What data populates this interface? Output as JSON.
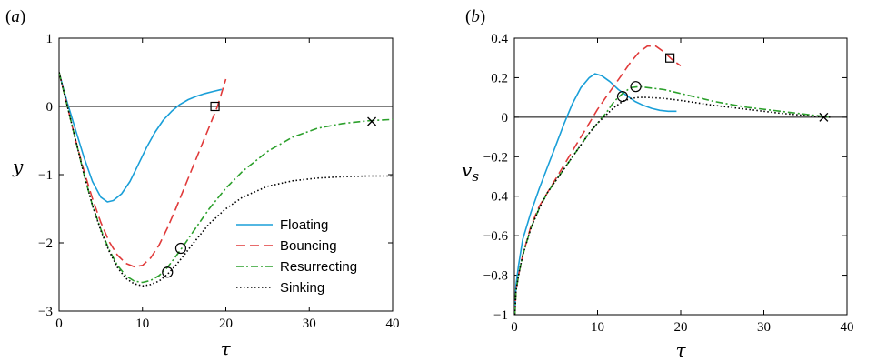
{
  "chart_data": [
    {
      "panel": "(a)",
      "type": "line",
      "xlabel": "τ",
      "ylabel": "y",
      "xlim": [
        0,
        40
      ],
      "ylim": [
        -3,
        1
      ],
      "xticks": [
        0,
        10,
        20,
        30,
        40
      ],
      "yticks": [
        -3,
        -2,
        -1,
        0,
        1
      ],
      "zero_line": true,
      "grid": false,
      "legend": {
        "position": "bottom-right",
        "entries": [
          "Floating",
          "Bouncing",
          "Resurrecting",
          "Sinking"
        ]
      },
      "series": [
        {
          "name": "Floating",
          "color": "#1a9fd8",
          "dash": "solid",
          "x": [
            0,
            0.5,
            1,
            1.5,
            2,
            3,
            4,
            5,
            5.8,
            6.5,
            7.5,
            8.5,
            9.5,
            10.5,
            11.5,
            12.5,
            13.5,
            14.5,
            15.5,
            16.5,
            17.5,
            18.5,
            19.5
          ],
          "y": [
            0.5,
            0.27,
            0.05,
            -0.15,
            -0.35,
            -0.75,
            -1.1,
            -1.33,
            -1.4,
            -1.38,
            -1.28,
            -1.1,
            -0.85,
            -0.6,
            -0.38,
            -0.2,
            -0.07,
            0.03,
            0.1,
            0.15,
            0.19,
            0.22,
            0.25
          ]
        },
        {
          "name": "Bouncing",
          "color": "#e03a3a",
          "dash": "dashed",
          "x": [
            0,
            0.5,
            1,
            2,
            3,
            4,
            5,
            6,
            7,
            8,
            9,
            10,
            11,
            12,
            13,
            14,
            15,
            16,
            17,
            18,
            19,
            20
          ],
          "y": [
            0.5,
            0.25,
            0.0,
            -0.5,
            -0.95,
            -1.35,
            -1.7,
            -1.98,
            -2.18,
            -2.3,
            -2.35,
            -2.33,
            -2.22,
            -2.03,
            -1.78,
            -1.5,
            -1.2,
            -0.9,
            -0.6,
            -0.3,
            0.0,
            0.4
          ]
        },
        {
          "name": "Resurrecting",
          "color": "#2ca02c",
          "dash": "dashdot",
          "x": [
            0,
            1,
            2,
            3,
            4,
            5,
            6,
            7,
            8,
            9,
            10,
            11,
            12,
            13,
            14,
            15,
            16,
            18,
            20,
            22,
            25,
            28,
            31,
            34,
            37,
            40
          ],
          "y": [
            0.5,
            0.0,
            -0.5,
            -1.0,
            -1.45,
            -1.8,
            -2.1,
            -2.33,
            -2.48,
            -2.56,
            -2.58,
            -2.55,
            -2.48,
            -2.36,
            -2.2,
            -2.03,
            -1.85,
            -1.5,
            -1.2,
            -0.95,
            -0.66,
            -0.45,
            -0.32,
            -0.25,
            -0.21,
            -0.19
          ]
        },
        {
          "name": "Sinking",
          "color": "#000000",
          "dash": "dotted",
          "x": [
            0,
            1,
            2,
            3,
            4,
            5,
            6,
            7,
            8,
            9,
            10,
            11,
            12,
            13,
            14,
            15,
            16,
            18,
            20,
            22,
            25,
            28,
            31,
            34,
            37,
            40
          ],
          "y": [
            0.5,
            0.0,
            -0.5,
            -1.0,
            -1.45,
            -1.82,
            -2.12,
            -2.36,
            -2.52,
            -2.6,
            -2.63,
            -2.61,
            -2.56,
            -2.46,
            -2.33,
            -2.18,
            -2.02,
            -1.72,
            -1.5,
            -1.33,
            -1.17,
            -1.09,
            -1.05,
            -1.03,
            -1.02,
            -1.02
          ]
        }
      ],
      "markers": [
        {
          "symbol": "square",
          "x": 18.7,
          "y": 0.0
        },
        {
          "symbol": "circle",
          "x": 13.0,
          "y": -2.43
        },
        {
          "symbol": "circle",
          "x": 14.6,
          "y": -2.08
        },
        {
          "symbol": "cross",
          "x": 37.5,
          "y": -0.22
        }
      ]
    },
    {
      "panel": "(b)",
      "type": "line",
      "xlabel": "τ",
      "ylabel": "v_s",
      "xlim": [
        0,
        40
      ],
      "ylim": [
        -1.0,
        0.4
      ],
      "xticks": [
        0,
        10,
        20,
        30,
        40
      ],
      "yticks": [
        -1.0,
        -0.8,
        -0.6,
        -0.4,
        -0.2,
        0,
        0.2,
        0.4
      ],
      "zero_line": true,
      "grid": false,
      "series": [
        {
          "name": "Floating",
          "color": "#1a9fd8",
          "dash": "solid",
          "x": [
            0.05,
            0.2,
            0.5,
            1,
            2,
            3,
            4,
            5,
            6,
            7,
            8,
            9,
            9.7,
            10.5,
            11.5,
            12.5,
            13.5,
            14.5,
            15.5,
            16.5,
            17.5,
            18.5,
            19.5
          ],
          "y": [
            -1.0,
            -0.85,
            -0.75,
            -0.62,
            -0.48,
            -0.36,
            -0.25,
            -0.14,
            -0.03,
            0.07,
            0.15,
            0.2,
            0.22,
            0.21,
            0.18,
            0.14,
            0.11,
            0.08,
            0.06,
            0.045,
            0.035,
            0.03,
            0.03
          ]
        },
        {
          "name": "Bouncing",
          "color": "#e03a3a",
          "dash": "dashed",
          "x": [
            0.05,
            0.2,
            0.5,
            1,
            2,
            3,
            4,
            5,
            6,
            7,
            8,
            9,
            10,
            11,
            12,
            13,
            14,
            15,
            16,
            17,
            18,
            19,
            20
          ],
          "y": [
            -1.0,
            -0.88,
            -0.8,
            -0.7,
            -0.55,
            -0.45,
            -0.38,
            -0.31,
            -0.24,
            -0.17,
            -0.1,
            -0.03,
            0.04,
            0.1,
            0.16,
            0.22,
            0.28,
            0.33,
            0.36,
            0.36,
            0.33,
            0.29,
            0.26
          ]
        },
        {
          "name": "Resurrecting",
          "color": "#2ca02c",
          "dash": "dashdot",
          "x": [
            0.05,
            0.2,
            0.5,
            1,
            2,
            3,
            4,
            5,
            6,
            7,
            8,
            9,
            10,
            11,
            12,
            13,
            14,
            15,
            16,
            18,
            20,
            24,
            28,
            32,
            36,
            38
          ],
          "y": [
            -1.0,
            -0.88,
            -0.8,
            -0.7,
            -0.56,
            -0.46,
            -0.38,
            -0.32,
            -0.26,
            -0.2,
            -0.14,
            -0.08,
            -0.03,
            0.02,
            0.08,
            0.12,
            0.15,
            0.155,
            0.15,
            0.14,
            0.12,
            0.08,
            0.05,
            0.03,
            0.01,
            0.0
          ]
        },
        {
          "name": "Sinking",
          "color": "#000000",
          "dash": "dotted",
          "x": [
            0.05,
            0.2,
            0.5,
            1,
            2,
            3,
            4,
            5,
            6,
            7,
            8,
            9,
            10,
            11,
            12,
            13,
            14,
            15,
            16,
            18,
            20,
            24,
            28,
            32,
            36,
            38
          ],
          "y": [
            -1.0,
            -0.88,
            -0.8,
            -0.7,
            -0.56,
            -0.46,
            -0.38,
            -0.32,
            -0.26,
            -0.2,
            -0.14,
            -0.08,
            -0.03,
            0.01,
            0.05,
            0.08,
            0.095,
            0.1,
            0.1,
            0.095,
            0.085,
            0.06,
            0.04,
            0.02,
            0.005,
            0.0
          ]
        }
      ],
      "markers": [
        {
          "symbol": "square",
          "x": 18.7,
          "y": 0.3
        },
        {
          "symbol": "circle",
          "x": 13.0,
          "y": 0.105
        },
        {
          "symbol": "circle",
          "x": 14.6,
          "y": 0.155
        },
        {
          "symbol": "cross",
          "x": 37.2,
          "y": 0.0
        }
      ]
    }
  ]
}
